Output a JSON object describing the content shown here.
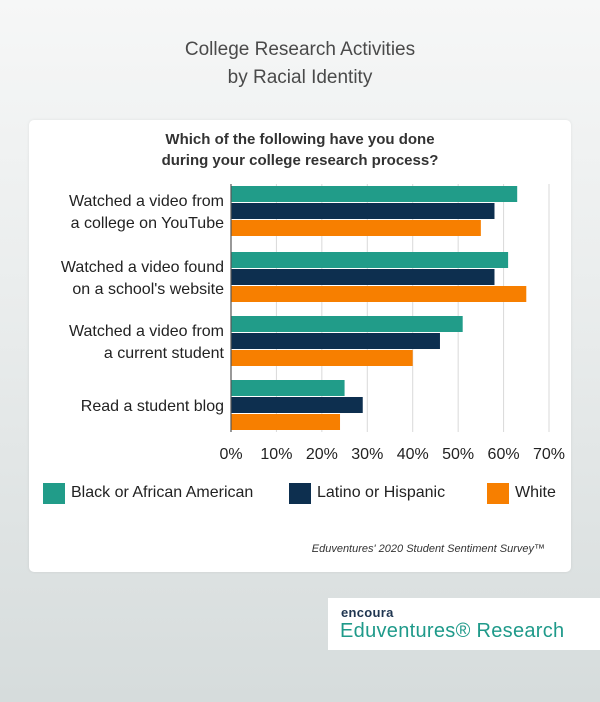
{
  "header": {
    "title_line1": "College Research Activities",
    "title_line2": "by Racial Identity"
  },
  "card": {
    "question_line1": "Which of the following have you done",
    "question_line2": "during your college research process?",
    "source": "Eduventures' 2020 Student Sentiment Survey™"
  },
  "brand": {
    "top": "encoura",
    "bottom": "Eduventures® Research"
  },
  "colors": {
    "teal": "#219c89",
    "navy": "#0d2f4f",
    "orange": "#f77f00"
  },
  "chart_data": {
    "type": "bar",
    "orientation": "horizontal",
    "title": "Which of the following have you done during your college research process?",
    "categories": [
      [
        "Watched a video from",
        "a college on YouTube"
      ],
      [
        "Watched a video found",
        "on a school's website"
      ],
      [
        "Watched a video from",
        "a current student"
      ],
      [
        "Read a student blog"
      ]
    ],
    "series": [
      {
        "name": "Black or African American",
        "color": "#219c89",
        "values": [
          63,
          61,
          51,
          25
        ]
      },
      {
        "name": "Latino or Hispanic",
        "color": "#0d2f4f",
        "values": [
          58,
          58,
          46,
          29
        ]
      },
      {
        "name": "White",
        "color": "#f77f00",
        "values": [
          55,
          65,
          40,
          24
        ]
      }
    ],
    "xlim": [
      0,
      70
    ],
    "xticks": [
      "0%",
      "10%",
      "20%",
      "30%",
      "40%",
      "50%",
      "60%",
      "70%"
    ],
    "grid": true,
    "legend_position": "bottom"
  }
}
